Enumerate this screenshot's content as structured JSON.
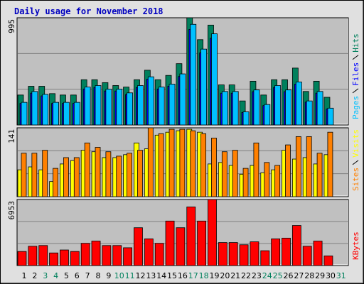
{
  "chart_data": [
    {
      "type": "bar",
      "title": "Daily usage for November 2018",
      "ylim": [
        0,
        995
      ],
      "yticks": [
        995
      ],
      "series": [
        {
          "name": "Hits",
          "color": "#00805c",
          "values": [
            278,
            359,
            359,
            291,
            278,
            278,
            420,
            420,
            393,
            366,
            352,
            420,
            508,
            420,
            460,
            569,
            995,
            792,
            927,
            372,
            372,
            223,
            406,
            278,
            420,
            420,
            528,
            311,
            406,
            257,
            0
          ]
        },
        {
          "name": "Files",
          "color": "#0000ff",
          "values": [
            200,
            295,
            270,
            200,
            200,
            200,
            334,
            348,
            315,
            315,
            283,
            348,
            425,
            334,
            360,
            450,
            887,
            669,
            804,
            295,
            295,
            116,
            309,
            180,
            348,
            309,
            379,
            212,
            295,
            148,
            0
          ]
        },
        {
          "name": "Pages",
          "color": "#00c0ff",
          "values": [
            210,
            311,
            284,
            210,
            210,
            210,
            352,
            366,
            332,
            332,
            298,
            366,
            447,
            352,
            379,
            474,
            934,
            704,
            846,
            311,
            311,
            122,
            325,
            190,
            366,
            325,
            399,
            223,
            311,
            156,
            0
          ]
        }
      ]
    },
    {
      "type": "bar",
      "ylim": [
        0,
        141
      ],
      "yticks": [
        141
      ],
      "series": [
        {
          "name": "Visits",
          "color": "#ffff00",
          "values": [
            55,
            61,
            55,
            31,
            67,
            74,
            95,
            92,
            80,
            80,
            86,
            110,
            98,
            126,
            132,
            135,
            138,
            132,
            67,
            70,
            64,
            46,
            64,
            49,
            55,
            95,
            77,
            80,
            67,
            86,
            0
          ]
        },
        {
          "name": "Sites",
          "color": "#ff8000",
          "values": [
            89,
            89,
            95,
            58,
            80,
            80,
            110,
            101,
            92,
            83,
            89,
            95,
            141,
            129,
            138,
            138,
            135,
            129,
            120,
            92,
            95,
            58,
            110,
            70,
            64,
            106,
            123,
            123,
            89,
            132,
            0
          ]
        }
      ]
    },
    {
      "type": "bar",
      "ylim": [
        0,
        6953
      ],
      "yticks": [
        6953
      ],
      "categories": [
        "1",
        "2",
        "3",
        "4",
        "5",
        "6",
        "7",
        "8",
        "9",
        "10",
        "11",
        "12",
        "13",
        "14",
        "15",
        "16",
        "17",
        "18",
        "19",
        "20",
        "21",
        "22",
        "23",
        "24",
        "25",
        "26",
        "27",
        "28",
        "29",
        "30",
        "31"
      ],
      "category_colors": [
        "#000000",
        "#000000",
        "#00805c",
        "#00805c",
        "#000000",
        "#000000",
        "#000000",
        "#000000",
        "#000000",
        "#00805c",
        "#00805c",
        "#000000",
        "#000000",
        "#000000",
        "#000000",
        "#000000",
        "#00805c",
        "#00805c",
        "#000000",
        "#000000",
        "#000000",
        "#000000",
        "#000000",
        "#00805c",
        "#00805c",
        "#000000",
        "#000000",
        "#000000",
        "#000000",
        "#000000",
        "#00805c"
      ],
      "series": [
        {
          "name": "KBytes",
          "color": "#ff0000",
          "values": [
            1484,
            2031,
            2109,
            1328,
            1641,
            1484,
            2344,
            2578,
            2109,
            2109,
            1875,
            3984,
            2812,
            2344,
            4687,
            3984,
            6172,
            4687,
            6953,
            2422,
            2422,
            2187,
            2500,
            1562,
            2812,
            2890,
            4219,
            2031,
            2578,
            1016,
            0
          ]
        }
      ]
    }
  ]
}
